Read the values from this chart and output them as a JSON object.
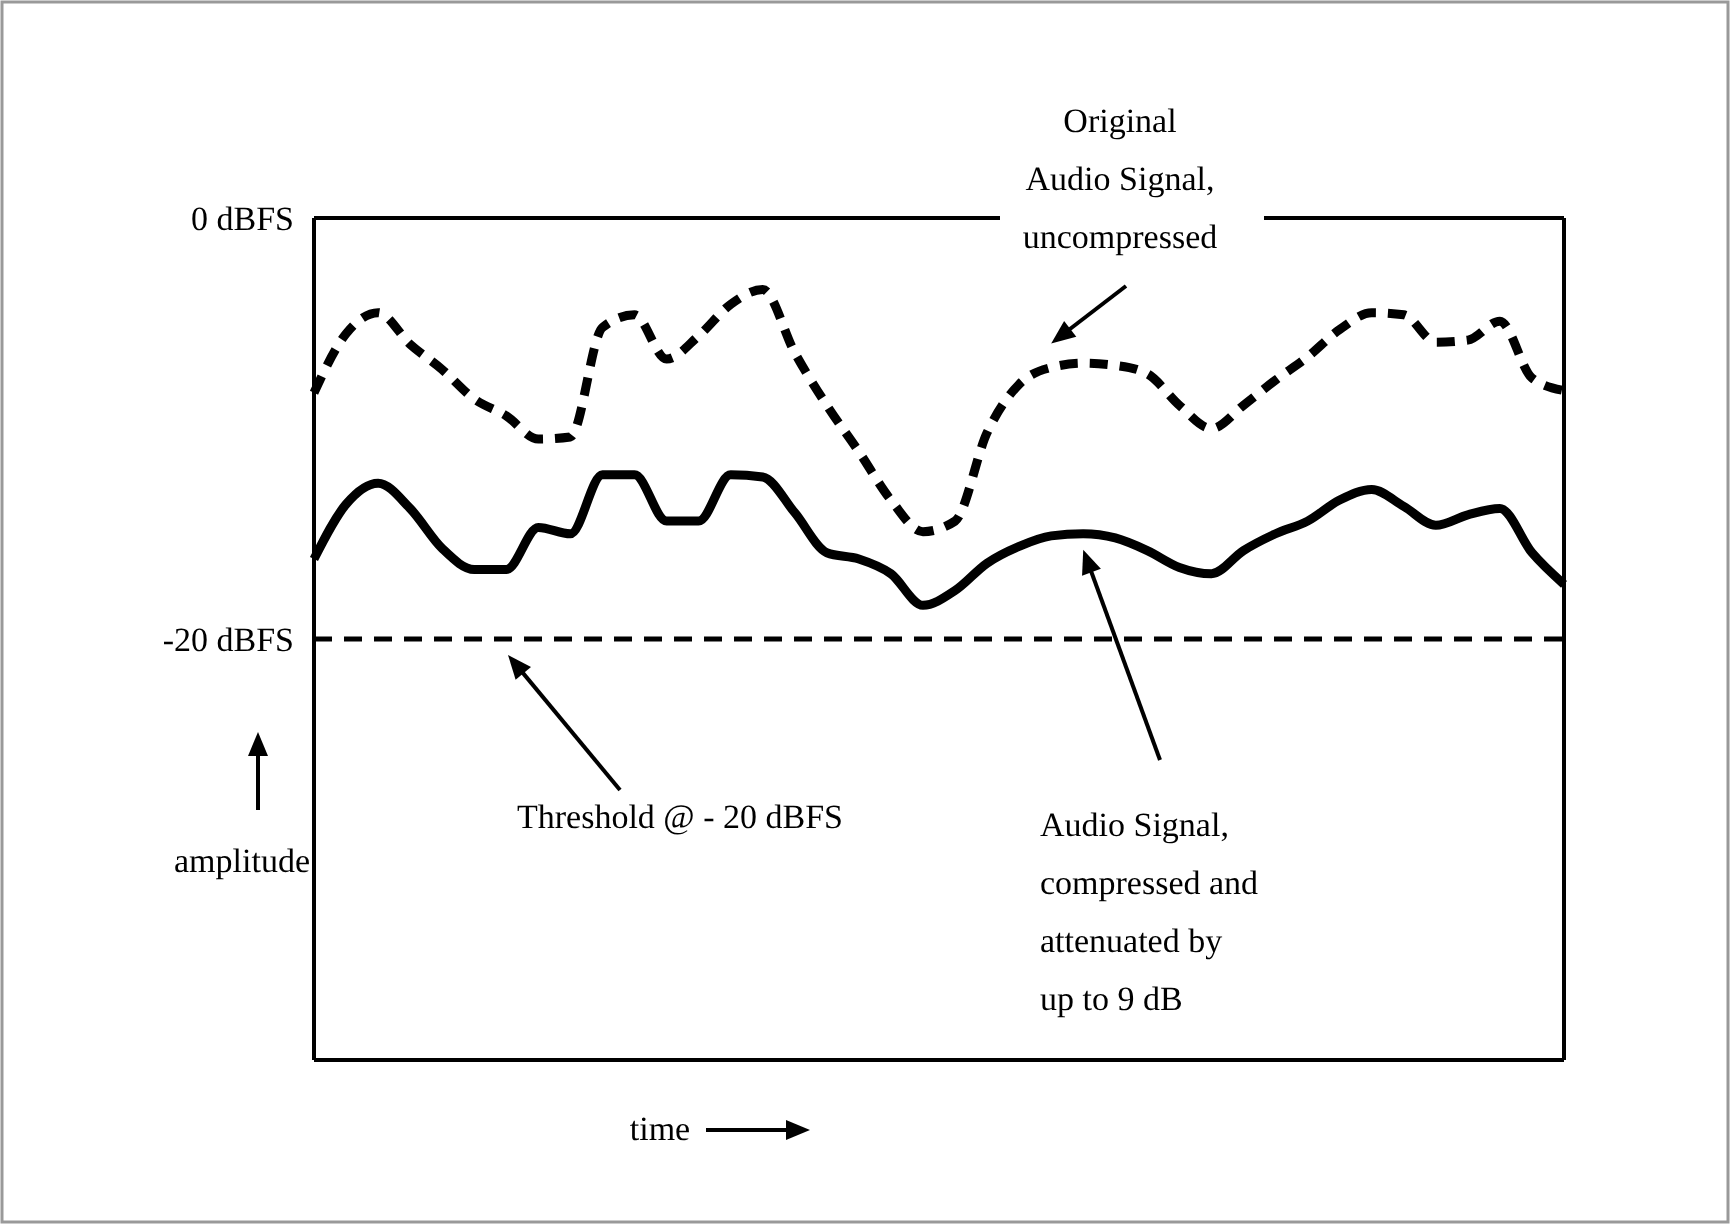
{
  "chart_data": {
    "type": "line",
    "xlabel": "time",
    "ylabel": "amplitude",
    "categories": [
      null,
      null,
      null,
      null,
      null,
      null,
      null,
      null,
      null,
      null,
      null,
      null,
      null,
      null,
      null,
      null,
      null,
      null,
      null,
      null,
      null,
      null,
      null,
      null,
      null,
      null,
      null,
      null,
      null,
      null,
      null,
      null,
      null,
      null,
      null,
      null,
      null,
      null,
      null,
      null
    ],
    "ylim": [
      -40,
      0
    ],
    "yticks": [
      {
        "value": 0,
        "label": "0 dBFS"
      },
      {
        "value": -20,
        "label": "-20 dBFS"
      }
    ],
    "tick_labels": "y",
    "ref_lines": [
      {
        "axis": "y",
        "value": -20,
        "color": "#000000",
        "line_style": "dashed"
      }
    ],
    "annotations": [
      "Original Audio Signal, uncompressed",
      "Threshold @ - 20 dBFS",
      "Audio Signal, compressed and attenuated by up to 9 dB"
    ],
    "series": [
      {
        "color": "#000000",
        "line_style": "dashed",
        "values": [
          -8.3,
          -5.5,
          -4.5,
          -6.0,
          -7.2,
          -8.6,
          -9.4,
          -10.5,
          -10.4,
          -5.2,
          -4.6,
          -6.7,
          -5.6,
          -4.1,
          -3.4,
          -6.4,
          -8.9,
          -11.1,
          -13.4,
          -14.9,
          -14.4,
          -10.2,
          -7.9,
          -7.1,
          -6.9,
          -7.0,
          -7.4,
          -8.9,
          -10.0,
          -8.9,
          -7.7,
          -6.6,
          -5.3,
          -4.5,
          -4.6,
          -5.9,
          -5.8,
          -4.9,
          -7.6,
          -8.2
        ]
      },
      {
        "color": "#000000",
        "line_style": "solid",
        "values": [
          -16.2,
          -13.6,
          -12.6,
          -13.8,
          -15.7,
          -16.7,
          -16.7,
          -14.7,
          -15.0,
          -12.2,
          -12.2,
          -14.4,
          -14.4,
          -12.2,
          -12.3,
          -14.0,
          -15.9,
          -16.2,
          -16.9,
          -18.4,
          -17.7,
          -16.4,
          -15.6,
          -15.1,
          -15.0,
          -15.2,
          -15.8,
          -16.6,
          -16.9,
          -15.8,
          -15.0,
          -14.4,
          -13.4,
          -12.9,
          -13.7,
          -14.6,
          -14.1,
          -13.8,
          -15.9,
          -17.4
        ]
      }
    ]
  }
}
